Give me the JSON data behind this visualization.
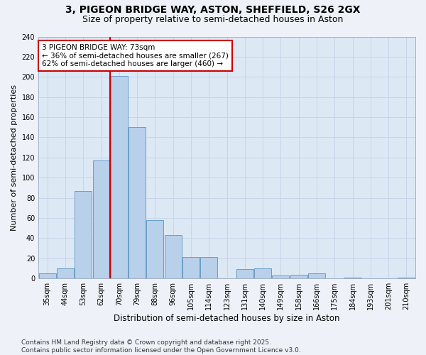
{
  "title1": "3, PIGEON BRIDGE WAY, ASTON, SHEFFIELD, S26 2GX",
  "title2": "Size of property relative to semi-detached houses in Aston",
  "xlabel": "Distribution of semi-detached houses by size in Aston",
  "ylabel": "Number of semi-detached properties",
  "categories": [
    "35sqm",
    "44sqm",
    "53sqm",
    "62sqm",
    "70sqm",
    "79sqm",
    "88sqm",
    "96sqm",
    "105sqm",
    "114sqm",
    "123sqm",
    "131sqm",
    "140sqm",
    "149sqm",
    "158sqm",
    "166sqm",
    "175sqm",
    "184sqm",
    "193sqm",
    "201sqm",
    "210sqm"
  ],
  "values": [
    5,
    10,
    87,
    117,
    201,
    150,
    58,
    43,
    21,
    21,
    0,
    9,
    10,
    3,
    4,
    5,
    0,
    1,
    0,
    0,
    1
  ],
  "bar_color": "#b8d0ea",
  "bar_edge_color": "#6a9ec8",
  "property_bin_index": 4,
  "vline_color": "#cc0000",
  "annotation_text": "3 PIGEON BRIDGE WAY: 73sqm\n← 36% of semi-detached houses are smaller (267)\n62% of semi-detached houses are larger (460) →",
  "annotation_box_color": "#ffffff",
  "annotation_box_edge": "#cc0000",
  "ylim": [
    0,
    240
  ],
  "yticks": [
    0,
    20,
    40,
    60,
    80,
    100,
    120,
    140,
    160,
    180,
    200,
    220,
    240
  ],
  "grid_color": "#c8d4e8",
  "bg_color": "#dde8f5",
  "fig_bg_color": "#eef2f8",
  "footer": "Contains HM Land Registry data © Crown copyright and database right 2025.\nContains public sector information licensed under the Open Government Licence v3.0.",
  "footer_fontsize": 6.5,
  "title1_fontsize": 10,
  "title2_fontsize": 9,
  "xlabel_fontsize": 8.5,
  "ylabel_fontsize": 8,
  "tick_fontsize": 7,
  "annot_fontsize": 7.5
}
